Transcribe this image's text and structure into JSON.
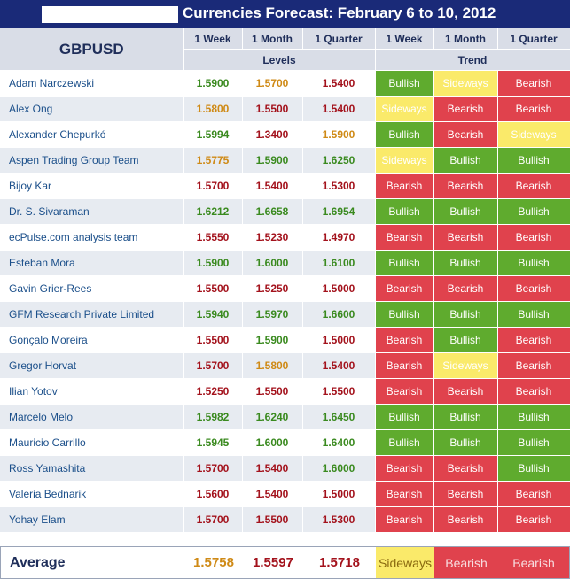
{
  "title": "Currencies Forecast: February 6 to 10, 2012",
  "pair": "GBPUSD",
  "headers": {
    "week": "1 Week",
    "month": "1 Month",
    "quarter": "1 Quarter",
    "levels": "Levels",
    "trend": "Trend"
  },
  "colors": {
    "header_bg": "#1a2a78",
    "bullish": "#5fab2e",
    "bearish": "#e0424d",
    "sideways": "#faea6a",
    "level_up": "#3a8a1f",
    "level_flat": "#cf8a16",
    "level_down": "#a3121c"
  },
  "rows": [
    {
      "name": "Adam Narczewski",
      "levels": [
        {
          "v": "1.5900",
          "c": "green"
        },
        {
          "v": "1.5700",
          "c": "orange"
        },
        {
          "v": "1.5400",
          "c": "red"
        }
      ],
      "trends": [
        "Bullish",
        "Sideways",
        "Bearish"
      ]
    },
    {
      "name": "Alex Ong",
      "levels": [
        {
          "v": "1.5800",
          "c": "orange"
        },
        {
          "v": "1.5500",
          "c": "red"
        },
        {
          "v": "1.5400",
          "c": "red"
        }
      ],
      "trends": [
        "Sideways",
        "Bearish",
        "Bearish"
      ]
    },
    {
      "name": "Alexander Chepurkó",
      "levels": [
        {
          "v": "1.5994",
          "c": "green"
        },
        {
          "v": "1.3400",
          "c": "red"
        },
        {
          "v": "1.5900",
          "c": "orange"
        }
      ],
      "trends": [
        "Bullish",
        "Bearish",
        "Sideways"
      ]
    },
    {
      "name": "Aspen Trading Group Team",
      "levels": [
        {
          "v": "1.5775",
          "c": "orange"
        },
        {
          "v": "1.5900",
          "c": "green"
        },
        {
          "v": "1.6250",
          "c": "green"
        }
      ],
      "trends": [
        "Sideways",
        "Bullish",
        "Bullish"
      ]
    },
    {
      "name": "Bijoy Kar",
      "levels": [
        {
          "v": "1.5700",
          "c": "red"
        },
        {
          "v": "1.5400",
          "c": "red"
        },
        {
          "v": "1.5300",
          "c": "red"
        }
      ],
      "trends": [
        "Bearish",
        "Bearish",
        "Bearish"
      ]
    },
    {
      "name": "Dr. S. Sivaraman",
      "levels": [
        {
          "v": "1.6212",
          "c": "green"
        },
        {
          "v": "1.6658",
          "c": "green"
        },
        {
          "v": "1.6954",
          "c": "green"
        }
      ],
      "trends": [
        "Bullish",
        "Bullish",
        "Bullish"
      ]
    },
    {
      "name": "ecPulse.com analysis team",
      "levels": [
        {
          "v": "1.5550",
          "c": "red"
        },
        {
          "v": "1.5230",
          "c": "red"
        },
        {
          "v": "1.4970",
          "c": "red"
        }
      ],
      "trends": [
        "Bearish",
        "Bearish",
        "Bearish"
      ]
    },
    {
      "name": "Esteban Mora",
      "levels": [
        {
          "v": "1.5900",
          "c": "green"
        },
        {
          "v": "1.6000",
          "c": "green"
        },
        {
          "v": "1.6100",
          "c": "green"
        }
      ],
      "trends": [
        "Bullish",
        "Bullish",
        "Bullish"
      ]
    },
    {
      "name": "Gavin Grier-Rees",
      "levels": [
        {
          "v": "1.5500",
          "c": "red"
        },
        {
          "v": "1.5250",
          "c": "red"
        },
        {
          "v": "1.5000",
          "c": "red"
        }
      ],
      "trends": [
        "Bearish",
        "Bearish",
        "Bearish"
      ]
    },
    {
      "name": "GFM Research Private Limited",
      "levels": [
        {
          "v": "1.5940",
          "c": "green"
        },
        {
          "v": "1.5970",
          "c": "green"
        },
        {
          "v": "1.6600",
          "c": "green"
        }
      ],
      "trends": [
        "Bullish",
        "Bullish",
        "Bullish"
      ]
    },
    {
      "name": "Gonçalo Moreira",
      "levels": [
        {
          "v": "1.5500",
          "c": "red"
        },
        {
          "v": "1.5900",
          "c": "green"
        },
        {
          "v": "1.5000",
          "c": "red"
        }
      ],
      "trends": [
        "Bearish",
        "Bullish",
        "Bearish"
      ]
    },
    {
      "name": "Gregor Horvat",
      "levels": [
        {
          "v": "1.5700",
          "c": "red"
        },
        {
          "v": "1.5800",
          "c": "orange"
        },
        {
          "v": "1.5400",
          "c": "red"
        }
      ],
      "trends": [
        "Bearish",
        "Sideways",
        "Bearish"
      ]
    },
    {
      "name": "Ilian Yotov",
      "levels": [
        {
          "v": "1.5250",
          "c": "red"
        },
        {
          "v": "1.5500",
          "c": "red"
        },
        {
          "v": "1.5500",
          "c": "red"
        }
      ],
      "trends": [
        "Bearish",
        "Bearish",
        "Bearish"
      ]
    },
    {
      "name": "Marcelo Melo",
      "levels": [
        {
          "v": "1.5982",
          "c": "green"
        },
        {
          "v": "1.6240",
          "c": "green"
        },
        {
          "v": "1.6450",
          "c": "green"
        }
      ],
      "trends": [
        "Bullish",
        "Bullish",
        "Bullish"
      ]
    },
    {
      "name": "Mauricio Carrillo",
      "levels": [
        {
          "v": "1.5945",
          "c": "green"
        },
        {
          "v": "1.6000",
          "c": "green"
        },
        {
          "v": "1.6400",
          "c": "green"
        }
      ],
      "trends": [
        "Bullish",
        "Bullish",
        "Bullish"
      ]
    },
    {
      "name": "Ross Yamashita",
      "levels": [
        {
          "v": "1.5700",
          "c": "red"
        },
        {
          "v": "1.5400",
          "c": "red"
        },
        {
          "v": "1.6000",
          "c": "green"
        }
      ],
      "trends": [
        "Bearish",
        "Bearish",
        "Bullish"
      ]
    },
    {
      "name": "Valeria Bednarik",
      "levels": [
        {
          "v": "1.5600",
          "c": "red"
        },
        {
          "v": "1.5400",
          "c": "red"
        },
        {
          "v": "1.5000",
          "c": "red"
        }
      ],
      "trends": [
        "Bearish",
        "Bearish",
        "Bearish"
      ]
    },
    {
      "name": "Yohay Elam",
      "levels": [
        {
          "v": "1.5700",
          "c": "red"
        },
        {
          "v": "1.5500",
          "c": "red"
        },
        {
          "v": "1.5300",
          "c": "red"
        }
      ],
      "trends": [
        "Bearish",
        "Bearish",
        "Bearish"
      ]
    }
  ],
  "average": {
    "label": "Average",
    "levels": [
      {
        "v": "1.5758",
        "c": "orange"
      },
      {
        "v": "1.5597",
        "c": "red"
      },
      {
        "v": "1.5718",
        "c": "red"
      }
    ],
    "trends": [
      "Sideways",
      "Bearish",
      "Bearish"
    ]
  }
}
